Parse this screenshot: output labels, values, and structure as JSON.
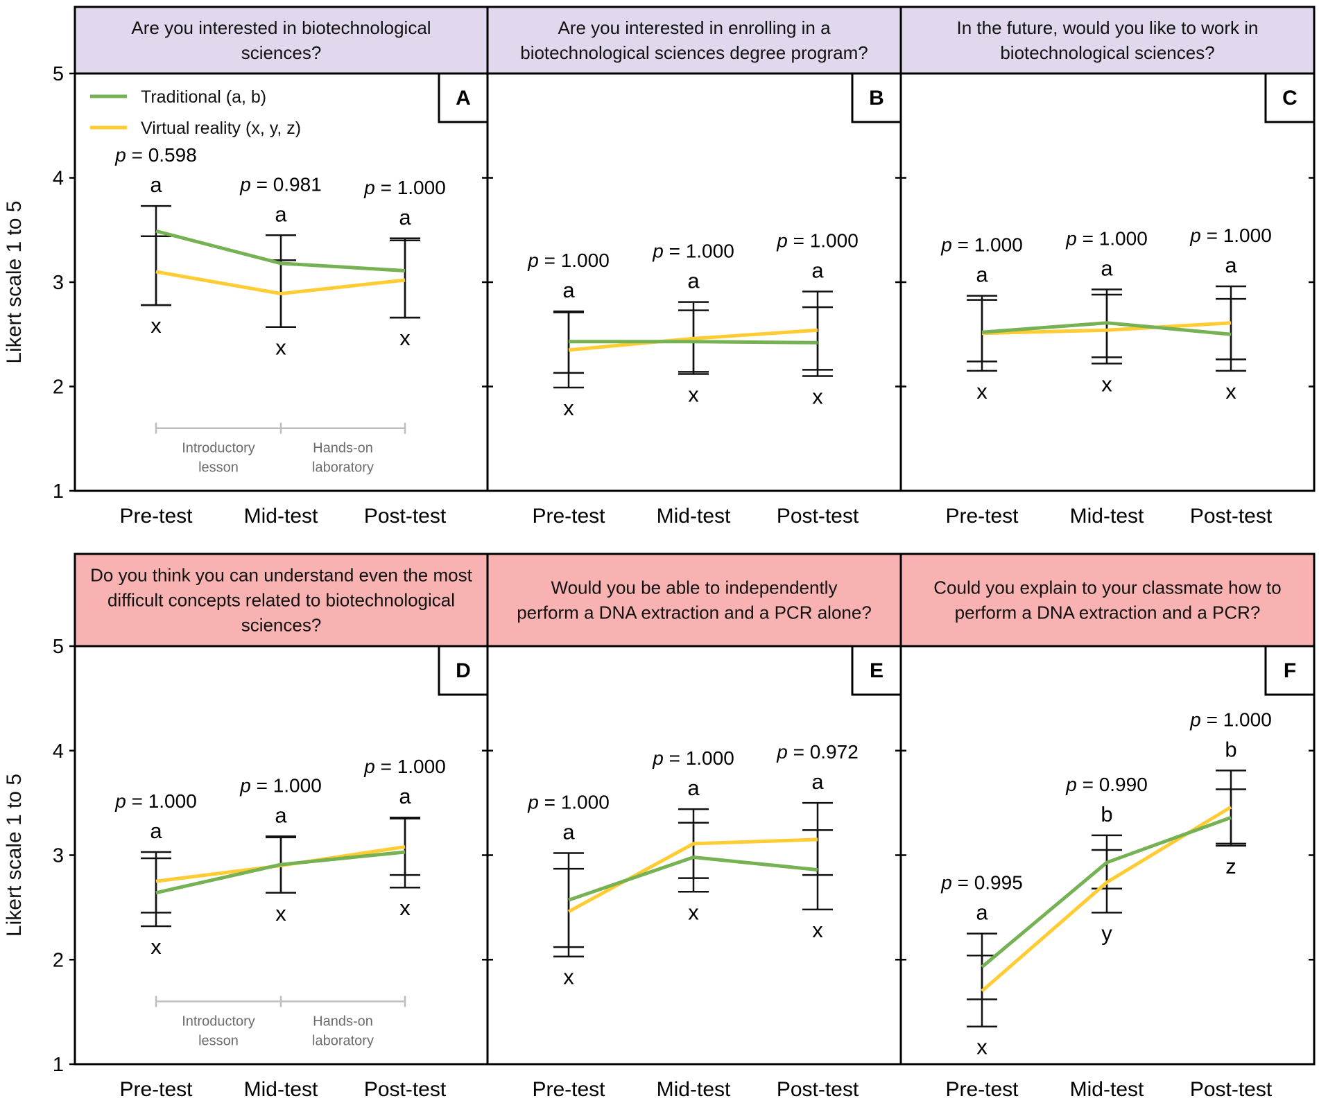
{
  "chart_data": {
    "type": "line",
    "ylabel": "Likert scale 1 to 5",
    "ylim": [
      1,
      5
    ],
    "yticks": [
      "1",
      "2",
      "3",
      "4",
      "5"
    ],
    "categories": [
      "Pre-test",
      "Mid-test",
      "Post-test"
    ],
    "legend": {
      "placement": "top-left of panel A",
      "entries": [
        {
          "label": "Traditional (a, b)",
          "color": "#76b154"
        },
        {
          "label": "Virtual reality (x, y, z)",
          "color": "#ffcc33"
        }
      ]
    },
    "phase_annotation": {
      "phases": [
        {
          "line1": "Introductory",
          "line2": "lesson"
        },
        {
          "line1": "Hands-on",
          "line2": "laboratory"
        }
      ]
    },
    "p_label": "p",
    "panels": [
      {
        "letter": "A",
        "question": [
          "Are you interested in biotechnological",
          "sciences?"
        ],
        "header_color": "#e2d8ee",
        "p_values": [
          "= 0.598",
          "= 0.981",
          "= 1.000"
        ],
        "trad_letters": [
          "a",
          "a",
          "a"
        ],
        "vr_letters": [
          "x",
          "x",
          "x"
        ],
        "series": [
          {
            "name": "Traditional",
            "values": [
              3.49,
              3.18,
              3.11
            ],
            "err_low": [
              2.78,
              2.57,
              2.66
            ],
            "err_high": [
              3.73,
              3.45,
              3.42
            ]
          },
          {
            "name": "Virtual reality",
            "values": [
              3.1,
              2.89,
              3.02
            ],
            "err_low": [
              2.78,
              2.57,
              2.66
            ],
            "err_high": [
              3.44,
              3.21,
              3.4
            ]
          }
        ],
        "show_legend": true,
        "show_phases": true
      },
      {
        "letter": "B",
        "question": [
          "Are you interested in enrolling in a",
          "biotechnological sciences degree program?"
        ],
        "header_color": "#e2d8ee",
        "p_values": [
          "= 1.000",
          "= 1.000",
          "= 1.000"
        ],
        "trad_letters": [
          "a",
          "a",
          "a"
        ],
        "vr_letters": [
          "x",
          "x",
          "x"
        ],
        "series": [
          {
            "name": "Traditional",
            "values": [
              2.43,
              2.43,
              2.42
            ],
            "err_low": [
              2.13,
              2.12,
              2.16
            ],
            "err_high": [
              2.72,
              2.81,
              2.91
            ]
          },
          {
            "name": "Virtual reality",
            "values": [
              2.35,
              2.46,
              2.54
            ],
            "err_low": [
              1.99,
              2.14,
              2.1
            ],
            "err_high": [
              2.71,
              2.73,
              2.76
            ]
          }
        ],
        "show_legend": false,
        "show_phases": false
      },
      {
        "letter": "C",
        "question": [
          "In the future, would you like to work in",
          "biotechnological sciences?"
        ],
        "header_color": "#e2d8ee",
        "p_values": [
          "= 1.000",
          "= 1.000",
          "= 1.000"
        ],
        "trad_letters": [
          "a",
          "a",
          "a"
        ],
        "vr_letters": [
          "x",
          "x",
          "x"
        ],
        "series": [
          {
            "name": "Traditional",
            "values": [
              2.52,
              2.61,
              2.5
            ],
            "err_low": [
              2.24,
              2.28,
              2.26
            ],
            "err_high": [
              2.87,
              2.93,
              2.96
            ]
          },
          {
            "name": "Virtual reality",
            "values": [
              2.51,
              2.54,
              2.61
            ],
            "err_low": [
              2.15,
              2.22,
              2.15
            ],
            "err_high": [
              2.83,
              2.88,
              2.84
            ]
          }
        ],
        "show_legend": false,
        "show_phases": false
      },
      {
        "letter": "D",
        "question": [
          "Do you think you can understand even the most",
          "difficult concepts related to biotechnological",
          "sciences?"
        ],
        "header_color": "#f8b2b2",
        "p_values": [
          "= 1.000",
          "= 1.000",
          "= 1.000"
        ],
        "trad_letters": [
          "a",
          "a",
          "a"
        ],
        "vr_letters": [
          "x",
          "x",
          "x"
        ],
        "series": [
          {
            "name": "Traditional",
            "values": [
              2.64,
              2.91,
              3.03
            ],
            "err_low": [
              2.45,
              2.64,
              2.81
            ],
            "err_high": [
              3.03,
              3.18,
              3.36
            ]
          },
          {
            "name": "Virtual reality",
            "values": [
              2.75,
              2.9,
              3.08
            ],
            "err_low": [
              2.32,
              2.64,
              2.69
            ],
            "err_high": [
              2.97,
              3.17,
              3.35
            ]
          }
        ],
        "show_legend": false,
        "show_phases": true
      },
      {
        "letter": "E",
        "question": [
          "Would you be able to independently",
          "perform a DNA extraction and a PCR alone?"
        ],
        "header_color": "#f8b2b2",
        "p_values": [
          "= 1.000",
          "= 1.000",
          "= 0.972"
        ],
        "trad_letters": [
          "a",
          "a",
          "a"
        ],
        "vr_letters": [
          "x",
          "x",
          "x"
        ],
        "series": [
          {
            "name": "Traditional",
            "values": [
              2.57,
              2.98,
              2.86
            ],
            "err_low": [
              2.12,
              2.65,
              2.48
            ],
            "err_high": [
              3.02,
              3.31,
              3.24
            ]
          },
          {
            "name": "Virtual reality",
            "values": [
              2.46,
              3.11,
              3.15
            ],
            "err_low": [
              2.03,
              2.78,
              2.81
            ],
            "err_high": [
              2.87,
              3.44,
              3.5
            ]
          }
        ],
        "show_legend": false,
        "show_phases": false
      },
      {
        "letter": "F",
        "question": [
          "Could you explain to your classmate how to",
          "perform a DNA extraction and a PCR?"
        ],
        "header_color": "#f8b2b2",
        "p_values": [
          "= 0.995",
          "= 0.990",
          "= 1.000"
        ],
        "trad_letters": [
          "a",
          "b",
          "b"
        ],
        "vr_letters": [
          "x",
          "y",
          "z"
        ],
        "series": [
          {
            "name": "Traditional",
            "values": [
              1.93,
              2.93,
              3.36
            ],
            "err_low": [
              1.62,
              2.68,
              3.11
            ],
            "err_high": [
              2.25,
              3.19,
              3.81
            ]
          },
          {
            "name": "Virtual reality",
            "values": [
              1.7,
              2.74,
              3.46
            ],
            "err_low": [
              1.36,
              2.45,
              3.09
            ],
            "err_high": [
              2.04,
              3.05,
              3.63
            ]
          }
        ],
        "show_legend": false,
        "show_phases": false
      }
    ]
  }
}
